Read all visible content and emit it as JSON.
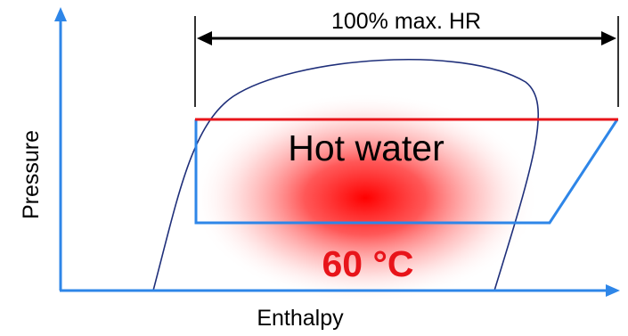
{
  "labels": {
    "span": "100% max. HR",
    "region": "Hot water",
    "temperature": "60 °C",
    "y_axis": "Pressure",
    "x_axis": "Enthalpy"
  },
  "colors": {
    "axis": "#2E86E8",
    "dome": "#1F2F7A",
    "cycle": "#2E86E8",
    "condensing_line": "#E8141A",
    "glow": "#FF0000",
    "temperature_text": "#E8141A",
    "dimension_arrow": "#000000"
  }
}
